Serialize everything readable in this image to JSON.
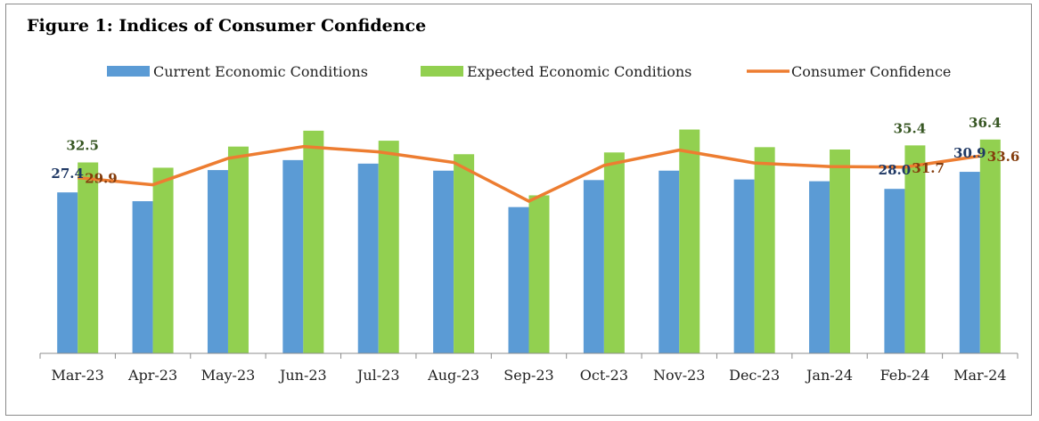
{
  "figure": {
    "title": "Figure 1: Indices of Consumer Confidence"
  },
  "colors": {
    "current": "#5b9bd5",
    "expected": "#92d050",
    "confidence": "#ed7d31",
    "label_current": "#1f3864",
    "label_expected": "#375623",
    "label_confidence": "#843c0c"
  },
  "chart_data": {
    "type": "bar",
    "title": "Figure 1: Indices of Consumer Confidence",
    "xlabel": "",
    "ylabel": "",
    "ylim": [
      0,
      45
    ],
    "grid": false,
    "legend_position": "top",
    "categories": [
      "Mar-23",
      "Apr-23",
      "May-23",
      "Jun-23",
      "Jul-23",
      "Aug-23",
      "Sep-23",
      "Oct-23",
      "Nov-23",
      "Dec-23",
      "Jan-24",
      "Feb-24",
      "Mar-24"
    ],
    "series": [
      {
        "name": "Current Economic Conditions",
        "kind": "bar",
        "values": [
          27.4,
          25.9,
          31.2,
          32.9,
          32.3,
          31.1,
          24.9,
          29.5,
          31.1,
          29.6,
          29.3,
          28.0,
          30.9
        ]
      },
      {
        "name": "Expected Economic Conditions",
        "kind": "bar",
        "values": [
          32.5,
          31.6,
          35.2,
          37.9,
          36.2,
          33.9,
          26.9,
          34.2,
          38.1,
          35.1,
          34.7,
          35.4,
          36.4
        ]
      },
      {
        "name": "Consumer Confidence",
        "kind": "line",
        "values": [
          29.9,
          28.7,
          33.2,
          35.2,
          34.3,
          32.5,
          25.9,
          32.0,
          34.6,
          32.4,
          31.8,
          31.7,
          33.6
        ]
      }
    ],
    "data_labels": [
      {
        "series": 0,
        "index": 0,
        "text": "27.4"
      },
      {
        "series": 1,
        "index": 0,
        "text": "32.5"
      },
      {
        "series": 2,
        "index": 0,
        "text": "29.9"
      },
      {
        "series": 0,
        "index": 11,
        "text": "28.0"
      },
      {
        "series": 1,
        "index": 11,
        "text": "35.4"
      },
      {
        "series": 2,
        "index": 11,
        "text": "31.7"
      },
      {
        "series": 0,
        "index": 12,
        "text": "30.9"
      },
      {
        "series": 1,
        "index": 12,
        "text": "36.4"
      },
      {
        "series": 2,
        "index": 12,
        "text": "33.6"
      }
    ]
  }
}
